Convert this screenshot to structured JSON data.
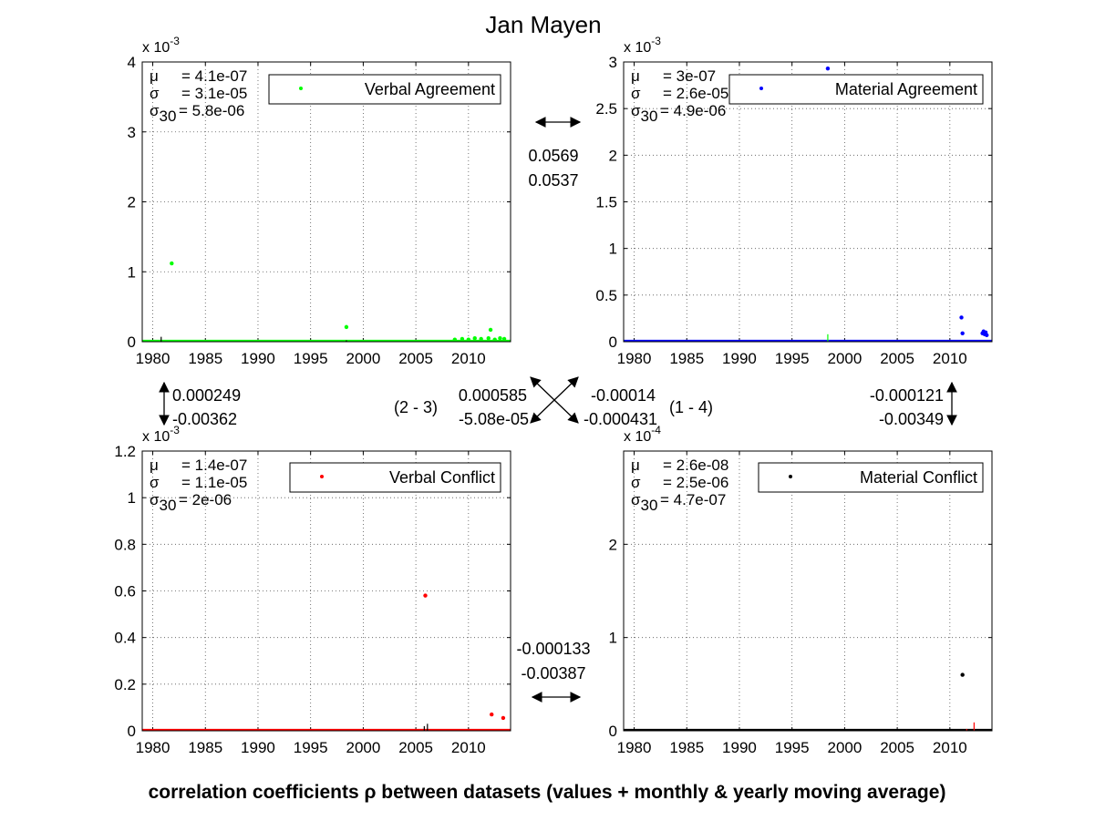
{
  "title": "Jan Mayen",
  "footer": "correlation coefficients ρ between datasets (values + monthly & yearly moving average)",
  "x_ticks": [
    "1980",
    "1985",
    "1990",
    "1995",
    "2000",
    "2005",
    "2010"
  ],
  "chart_data": [
    {
      "type": "scatter",
      "name": "Verbal Agreement",
      "color": "#00ff00",
      "exponent": "x 10",
      "exponent_power": "-3",
      "xlim": [
        1979,
        2014
      ],
      "ylim": [
        0,
        4
      ],
      "y_ticks": [
        "0",
        "1",
        "2",
        "3",
        "4"
      ],
      "y_tick_values": [
        0,
        1,
        2,
        3,
        4
      ],
      "stats": {
        "mu": "= 4.1e-07",
        "sigma": "= 3.1e-05",
        "sigma30": "= 5.8e-06"
      },
      "points": [
        [
          1981.8,
          1.12
        ],
        [
          1998.4,
          0.21
        ],
        [
          2012.1,
          0.17
        ],
        [
          2008.7,
          0.03
        ],
        [
          2009.4,
          0.04
        ],
        [
          2010.0,
          0.03
        ],
        [
          2010.6,
          0.05
        ],
        [
          2011.2,
          0.04
        ],
        [
          2011.9,
          0.05
        ],
        [
          2012.5,
          0.03
        ],
        [
          2013.0,
          0.05
        ],
        [
          2013.4,
          0.04
        ]
      ],
      "outlier_color": "#000000",
      "outliers": [
        [
          1980.8,
          0.07
        ],
        [
          1998.4,
          0.02
        ]
      ]
    },
    {
      "type": "scatter",
      "name": "Material Agreement",
      "color": "#0000ff",
      "exponent": "x 10",
      "exponent_power": "-3",
      "xlim": [
        1979,
        2014
      ],
      "ylim": [
        0,
        3
      ],
      "y_ticks": [
        "0",
        "0.5",
        "1",
        "1.5",
        "2",
        "2.5",
        "3"
      ],
      "y_tick_values": [
        0,
        0.5,
        1,
        1.5,
        2,
        2.5,
        3
      ],
      "stats": {
        "mu": "= 3e-07",
        "sigma": "= 2.6e-05",
        "sigma30": "= 4.9e-06"
      },
      "points": [
        [
          1998.4,
          2.93
        ],
        [
          2011.1,
          0.26
        ],
        [
          2011.2,
          0.09
        ],
        [
          2013.1,
          0.09
        ],
        [
          2013.2,
          0.11
        ],
        [
          2013.3,
          0.08
        ],
        [
          2013.4,
          0.1
        ],
        [
          2013.5,
          0.07
        ]
      ],
      "outlier_color": "#00ff00",
      "outliers": [
        [
          1998.4,
          0.08
        ]
      ]
    },
    {
      "type": "scatter",
      "name": "Verbal Conflict",
      "color": "#ff0000",
      "exponent": "x 10",
      "exponent_power": "-3",
      "xlim": [
        1979,
        2014
      ],
      "ylim": [
        0,
        1.2
      ],
      "y_ticks": [
        "0",
        "0.2",
        "0.4",
        "0.6",
        "0.8",
        "1",
        "1.2"
      ],
      "y_tick_values": [
        0,
        0.2,
        0.4,
        0.6,
        0.8,
        1,
        1.2
      ],
      "stats": {
        "mu": "= 1.4e-07",
        "sigma": "= 1.1e-05",
        "sigma30": "= 2e-06"
      },
      "points": [
        [
          2005.9,
          0.58
        ],
        [
          2012.2,
          0.07
        ],
        [
          2013.3,
          0.055
        ]
      ],
      "outlier_color": "#000000",
      "outliers": [
        [
          2005.8,
          0.02
        ],
        [
          2006.1,
          0.03
        ]
      ]
    },
    {
      "type": "scatter",
      "name": "Material Conflict",
      "color": "#000000",
      "exponent": "x 10",
      "exponent_power": "-4",
      "xlim": [
        1979,
        2014
      ],
      "ylim": [
        0,
        3
      ],
      "y_ticks": [
        "0",
        "1",
        "2"
      ],
      "y_tick_values": [
        0,
        1,
        2
      ],
      "stats": {
        "mu": "= 2.6e-08",
        "sigma": "= 2.5e-06",
        "sigma30": "= 4.7e-07"
      },
      "points": [
        [
          2011.2,
          0.6
        ]
      ],
      "outlier_color": "#ff0000",
      "outliers": [
        [
          2012.3,
          0.09
        ],
        [
          2011.6,
          0.02
        ]
      ]
    }
  ],
  "correlations": {
    "top": [
      "0.0569",
      "0.0537"
    ],
    "left": [
      "0.000249",
      "-0.00362"
    ],
    "right": [
      "-0.000121",
      "-0.00349"
    ],
    "bottom": [
      "-0.000133",
      "-0.00387"
    ],
    "diag_23": [
      "0.000585",
      "-5.08e-05"
    ],
    "diag_14": [
      "-0.00014",
      "-0.000431"
    ],
    "label_23": "(2 - 3)",
    "label_14": "(1 - 4)"
  }
}
